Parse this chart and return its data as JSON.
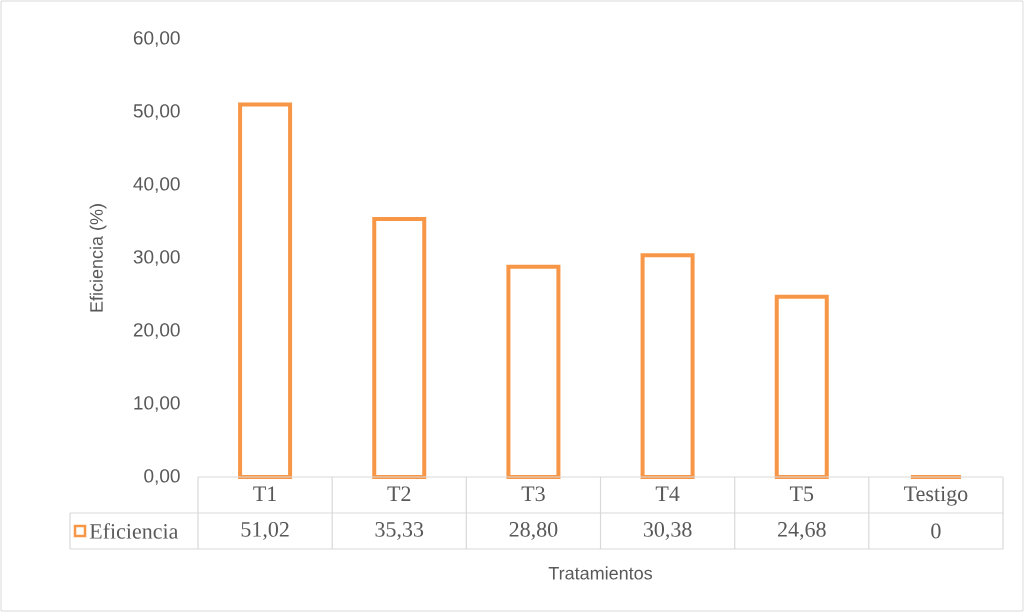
{
  "chart_data": {
    "type": "bar",
    "xlabel": "Tratamientos",
    "ylabel": "Eficiencia (%)",
    "categories": [
      "T1",
      "T2",
      "T3",
      "T4",
      "T5",
      "Testigo"
    ],
    "series": [
      {
        "name": "Eficiencia",
        "color": "#f79646",
        "values": [
          51.02,
          35.33,
          28.8,
          30.38,
          24.68,
          0
        ],
        "value_labels": [
          "51,02",
          "35,33",
          "28,80",
          "30,38",
          "24,68",
          "0"
        ]
      }
    ],
    "ylim": [
      0,
      60
    ],
    "yticks": [
      {
        "value": 0,
        "label": "0,00"
      },
      {
        "value": 10,
        "label": "10,00"
      },
      {
        "value": 20,
        "label": "20,00"
      },
      {
        "value": 30,
        "label": "30,00"
      },
      {
        "value": 40,
        "label": "40,00"
      },
      {
        "value": 50,
        "label": "50,00"
      },
      {
        "value": 60,
        "label": "60,00"
      }
    ],
    "legend": "bottom"
  }
}
